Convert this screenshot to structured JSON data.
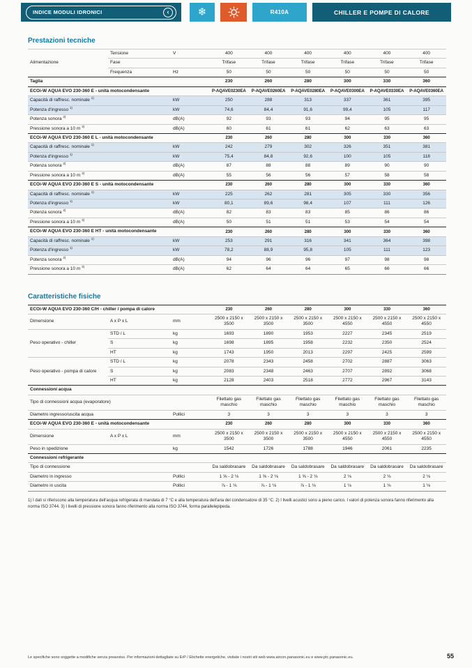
{
  "header": {
    "nav_label": "INDICE MODULI IDRONICI",
    "refrigerant": "R410A",
    "title": "CHILLER E POMPE DI CALORE",
    "colors": {
      "teal": "#115e76",
      "cyan": "#2ea6cb",
      "orange": "#df5b2b",
      "heading_accent": "#0b7da6",
      "row_shade": "#d8e5f1"
    }
  },
  "sections": [
    {
      "title": "Prestazioni tecniche",
      "table": {
        "rows": [
          {
            "type": "data",
            "group": {
              "label": "Alimentazione",
              "span": 3
            },
            "label2": "Tensione",
            "unit": "V",
            "values": [
              "400",
              "400",
              "400",
              "400",
              "400",
              "400"
            ]
          },
          {
            "type": "data",
            "cont": true,
            "label2": "Fase",
            "unit": "",
            "values": [
              "Trifase",
              "Trifase",
              "Trifase",
              "Trifase",
              "Trifase",
              "Trifase"
            ]
          },
          {
            "type": "data",
            "cont": true,
            "label2": "Frequenza",
            "unit": "Hz",
            "values": [
              "50",
              "50",
              "50",
              "50",
              "50",
              "50"
            ]
          },
          {
            "type": "data",
            "dark": true,
            "bold": true,
            "label": "Taglia",
            "unit": "",
            "values": [
              "230",
              "260",
              "280",
              "300",
              "330",
              "360"
            ]
          },
          {
            "type": "section",
            "label": "ECOi-W AQUA EVO 230-360 E - unità motocondensante",
            "values": [
              "P-AQAVE0230EA",
              "P-AQAVE0260EA",
              "P-AQAVE0280EA",
              "P-AQAVE0300EA",
              "P-AQAVE0330EA",
              "P-AQAVE0360EA"
            ]
          },
          {
            "type": "data",
            "shaded": true,
            "label": "Capacità di raffresc. nominale ",
            "sup": "1)",
            "unit": "kW",
            "values": [
              "250",
              "288",
              "313",
              "337",
              "361",
              "395"
            ]
          },
          {
            "type": "data",
            "shaded": true,
            "label": "Potenza d'ingresso ",
            "sup": "1)",
            "unit": "kW",
            "values": [
              "74,6",
              "84,4",
              "91,6",
              "99,4",
              "105",
              "117"
            ]
          },
          {
            "type": "data",
            "label": "Potenza sonora ",
            "sup": "2)",
            "unit": "dB(A)",
            "values": [
              "92",
              "93",
              "93",
              "94",
              "95",
              "95"
            ]
          },
          {
            "type": "data",
            "label": "Pressione sonora a 10 m ",
            "sup": "3)",
            "unit": "dB(A)",
            "values": [
              "60",
              "61",
              "61",
              "62",
              "63",
              "63"
            ]
          },
          {
            "type": "section",
            "label": "ECOi-W AQUA EVO 230-360 E L - unità motocondensante",
            "values": [
              "230",
              "260",
              "280",
              "300",
              "330",
              "360"
            ]
          },
          {
            "type": "data",
            "shaded": true,
            "label": "Capacità di raffresc. nominale ",
            "sup": "1)",
            "unit": "kW",
            "values": [
              "242",
              "279",
              "302",
              "326",
              "351",
              "381"
            ]
          },
          {
            "type": "data",
            "shaded": true,
            "label": "Potenza d'ingresso ",
            "sup": "1)",
            "unit": "kW",
            "values": [
              "75,4",
              "84,8",
              "92,6",
              "100",
              "105",
              "118"
            ]
          },
          {
            "type": "data",
            "label": "Potenza sonora ",
            "sup": "2)",
            "unit": "dB(A)",
            "values": [
              "87",
              "88",
              "88",
              "89",
              "90",
              "90"
            ]
          },
          {
            "type": "data",
            "label": "Pressione sonora a 10 m ",
            "sup": "3)",
            "unit": "dB(A)",
            "values": [
              "55",
              "56",
              "56",
              "57",
              "58",
              "58"
            ]
          },
          {
            "type": "section",
            "label": "ECOi-W AQUA EVO 230-360 E S - unità motocondensante",
            "values": [
              "230",
              "260",
              "280",
              "300",
              "330",
              "360"
            ]
          },
          {
            "type": "data",
            "shaded": true,
            "label": "Capacità di raffresc. nominale ",
            "sup": "1)",
            "unit": "kW",
            "values": [
              "225",
              "262",
              "281",
              "305",
              "330",
              "356"
            ]
          },
          {
            "type": "data",
            "shaded": true,
            "label": "Potenza d'ingresso ",
            "sup": "1)",
            "unit": "kW",
            "values": [
              "80,1",
              "89,6",
              "98,4",
              "107",
              "111",
              "126"
            ]
          },
          {
            "type": "data",
            "label": "Potenza sonora ",
            "sup": "2)",
            "unit": "dB(A)",
            "values": [
              "82",
              "83",
              "83",
              "85",
              "86",
              "86"
            ]
          },
          {
            "type": "data",
            "label": "Pressione sonora a 10 m ",
            "sup": "3)",
            "unit": "dB(A)",
            "values": [
              "50",
              "51",
              "51",
              "53",
              "54",
              "54"
            ]
          },
          {
            "type": "section",
            "label": "ECOi-W AQUA EVO 230-360 E HT - unità motocondensante",
            "values": [
              "230",
              "260",
              "280",
              "300",
              "330",
              "360"
            ]
          },
          {
            "type": "data",
            "shaded": true,
            "label": "Capacità di raffresc. nominale ",
            "sup": "1)",
            "unit": "kW",
            "values": [
              "253",
              "291",
              "316",
              "341",
              "364",
              "398"
            ]
          },
          {
            "type": "data",
            "shaded": true,
            "label": "Potenza d'ingresso ",
            "sup": "1)",
            "unit": "kW",
            "values": [
              "78,2",
              "88,9",
              "95,8",
              "105",
              "111",
              "123"
            ]
          },
          {
            "type": "data",
            "label": "Potenza sonora ",
            "sup": "2)",
            "unit": "dB(A)",
            "values": [
              "94",
              "96",
              "96",
              "97",
              "98",
              "98"
            ]
          },
          {
            "type": "data",
            "label": "Pressione sonora a 10 m ",
            "sup": "3)",
            "unit": "dB(A)",
            "values": [
              "62",
              "64",
              "64",
              "65",
              "66",
              "66"
            ]
          }
        ]
      }
    },
    {
      "title": "Caratteristiche fisiche",
      "table": {
        "rows": [
          {
            "type": "section",
            "label": "ECOi-W AQUA EVO 230-360 C/H - chiller / pompa di calore",
            "values": [
              "230",
              "260",
              "280",
              "300",
              "330",
              "360"
            ]
          },
          {
            "type": "data",
            "group": {
              "label": "Dimensione",
              "span": 1
            },
            "label2": "A x P x L",
            "unit": "mm",
            "values": [
              "2500 x 2150 x 3500",
              "2500 x 2150 x 3500",
              "2500 x 2150 x 3500",
              "2500 x 2150 x 4550",
              "2500 x 2150 x 4550",
              "2500 x 2150 x 4550"
            ]
          },
          {
            "type": "data",
            "group": {
              "label": "Peso operativo - chiller",
              "span": 3
            },
            "label2": "STD / L",
            "unit": "kg",
            "values": [
              "1693",
              "1890",
              "1953",
              "2227",
              "2345",
              "2519"
            ]
          },
          {
            "type": "data",
            "cont": true,
            "label2": "S",
            "unit": "kg",
            "values": [
              "1698",
              "1895",
              "1958",
              "2232",
              "2350",
              "2524"
            ]
          },
          {
            "type": "data",
            "cont": true,
            "label2": "HT",
            "unit": "kg",
            "values": [
              "1743",
              "1950",
              "2013",
              "2297",
              "2425",
              "2599"
            ]
          },
          {
            "type": "data",
            "group": {
              "label": "Peso operativo - pompa di calore",
              "span": 3
            },
            "label2": "STD / L",
            "unit": "kg",
            "values": [
              "2078",
              "2343",
              "2458",
              "2702",
              "2887",
              "3063"
            ]
          },
          {
            "type": "data",
            "cont": true,
            "label2": "S",
            "unit": "kg",
            "values": [
              "2083",
              "2348",
              "2463",
              "2707",
              "2892",
              "3068"
            ]
          },
          {
            "type": "data",
            "cont": true,
            "label2": "HT",
            "unit": "kg",
            "values": [
              "2128",
              "2403",
              "2518",
              "2772",
              "2967",
              "3143"
            ]
          },
          {
            "type": "subheader",
            "label": "Connessioni acqua"
          },
          {
            "type": "data",
            "span3": true,
            "label": "Tipo di connessioni acqua (evaporatore)",
            "values": [
              "Filettato gas maschio",
              "Filettato gas maschio",
              "Filettato gas maschio",
              "Filettato gas maschio",
              "Filettato gas maschio",
              "Filettato gas maschio"
            ]
          },
          {
            "type": "data",
            "label": "Diametro ingresso/uscita acqua",
            "unit": "Pollici",
            "values": [
              "3",
              "3",
              "3",
              "3",
              "3",
              "3"
            ]
          },
          {
            "type": "section",
            "label": "ECOi-W AQUA EVO 230-360 E - unità motocondensante",
            "values": [
              "230",
              "260",
              "280",
              "300",
              "330",
              "360"
            ]
          },
          {
            "type": "data",
            "group": {
              "label": "Dimensione",
              "span": 1
            },
            "label2": "A x P x L",
            "unit": "mm",
            "values": [
              "2500 x 2150 x 3500",
              "2500 x 2150 x 3500",
              "2500 x 2150 x 3500",
              "2500 x 2150 x 4550",
              "2500 x 2150 x 4550",
              "2500 x 2150 x 4550"
            ]
          },
          {
            "type": "data",
            "label": "Peso in spedizione",
            "unit": "kg",
            "values": [
              "1542",
              "1726",
              "1788",
              "1946",
              "2061",
              "2235"
            ]
          },
          {
            "type": "subheader",
            "label": "Connessioni refrigerante"
          },
          {
            "type": "data",
            "span3": true,
            "label": "Tipo di connessione",
            "values": [
              "Da saldobrasare",
              "Da saldobrasare",
              "Da saldobrasare",
              "Da saldobrasare",
              "Da saldobrasare",
              "Da saldobrasare"
            ]
          },
          {
            "type": "data",
            "label": "Diametro in ingresso",
            "unit": "Pollici",
            "values": [
              "1 ⅝ - 2 ⅛",
              "1 ⅝ - 2 ⅛",
              "1 ⅝ - 2 ⅛",
              "2 ⅛",
              "2 ⅛",
              "2 ⅛"
            ]
          },
          {
            "type": "data",
            "label": "Diametro in uscita",
            "unit": "Pollici",
            "values": [
              "⅞ - 1 ⅛",
              "⅞ - 1 ⅛",
              "⅞ - 1 ⅛",
              "1 ⅛",
              "1 ⅛",
              "1 ⅛"
            ]
          }
        ]
      }
    }
  ],
  "footnote": "1) I dati si riferiscono alla temperatura dell'acqua refrigerata di mandata di 7 °C e alla temperatura dell'aria del condensatore di 35 °C. 2) I livelli acustici sono a pieno carico. I valori di potenza sonora fanno riferimento alla norma ISO 3744. 3) I livelli di pressione sonora fanno riferimento alla norma ISO 3744, forma parallelepipeda.",
  "footer": {
    "disclaimer": "Le specifiche sono soggette a modifiche senza preavviso. Per informazioni dettagliate su ErP / Etichette energetiche, visitate i nostri siti web www.aircon.panasonic.eu e www.ptc.panasonic.eu.",
    "page_number": "55"
  }
}
